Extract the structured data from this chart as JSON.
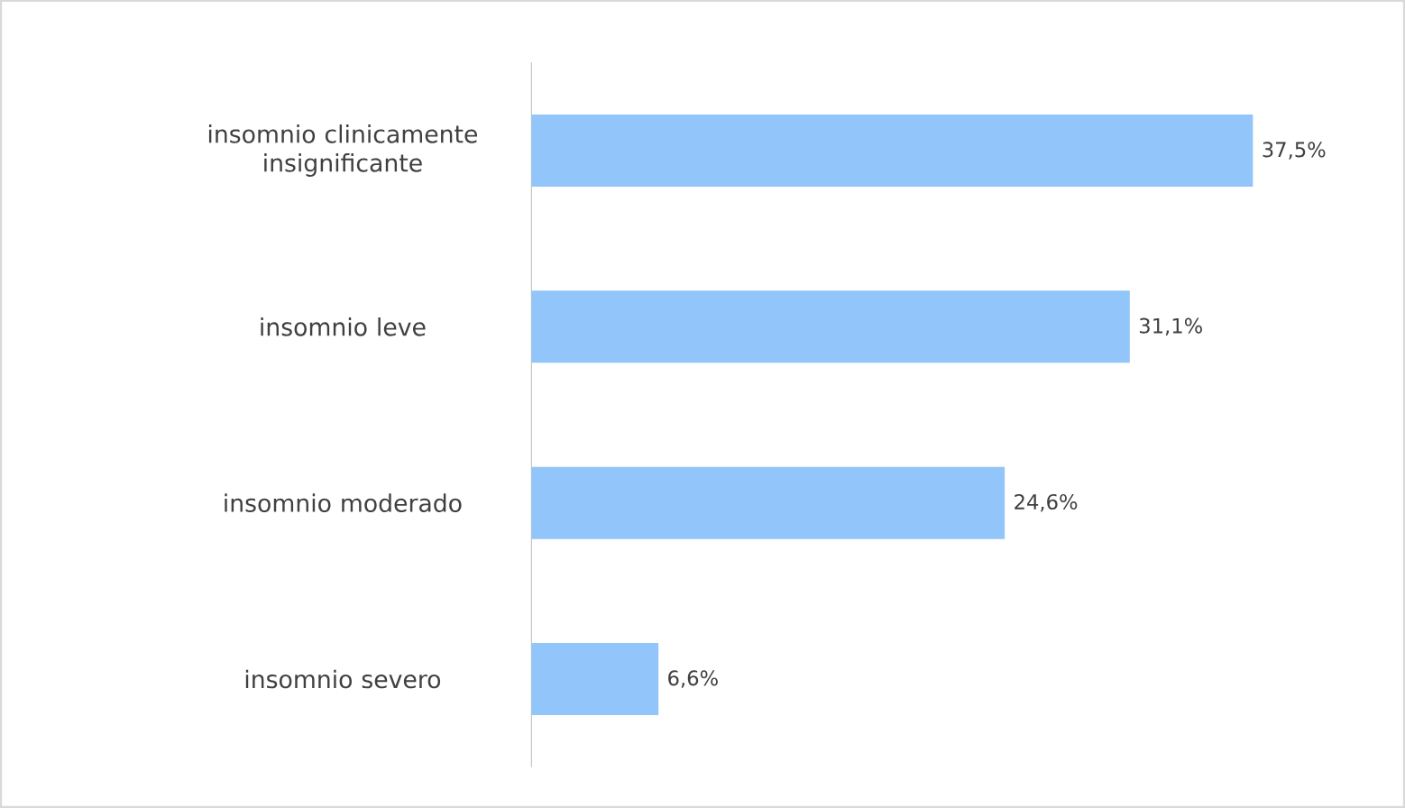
{
  "chart_data": {
    "type": "bar",
    "orientation": "horizontal",
    "categories": [
      "insomnio clinicamente insignificante",
      "insomnio leve",
      "insomnio moderado",
      "insomnio severo"
    ],
    "values": [
      37.5,
      31.1,
      24.6,
      6.6
    ],
    "value_labels": [
      "37,5%",
      "31,1%",
      "24,6%",
      "6,6%"
    ],
    "color": "#92c5f9"
  }
}
